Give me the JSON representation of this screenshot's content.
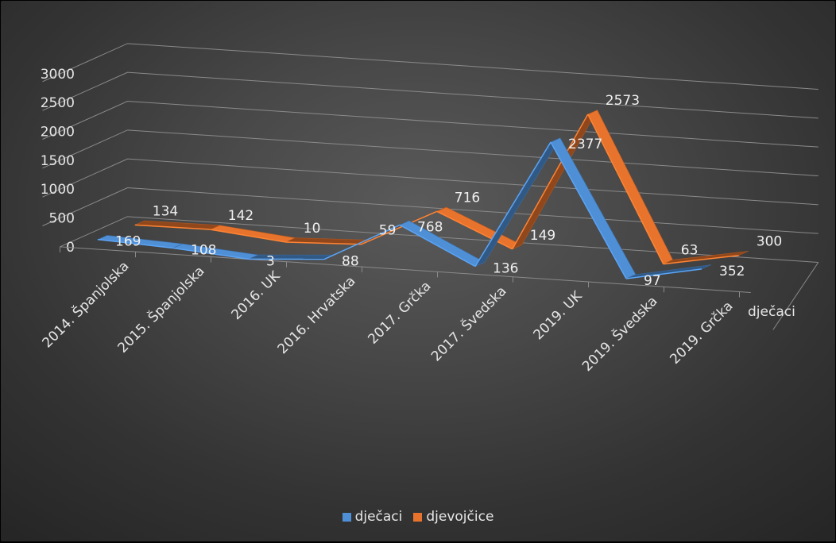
{
  "chart_data": {
    "type": "line",
    "title": "",
    "xlabel": "",
    "ylabel": "",
    "ylim": [
      0,
      3000
    ],
    "yticks": [
      0,
      500,
      1000,
      1500,
      2000,
      2500,
      3000
    ],
    "grid": true,
    "legend_position": "bottom",
    "depth_axis_label": "dječaci",
    "categories": [
      "2014. Španjolska",
      "2015. Španjolska",
      "2016. UK",
      "2016. Hrvatska",
      "2017. Grčka",
      "2017. Švedska",
      "2019. UK",
      "2019. Švedska",
      "2019. Grčka"
    ],
    "series": [
      {
        "name": "dječaci",
        "color": "#4f8fd6",
        "values": [
          169,
          108,
          3,
          88,
          768,
          136,
          2377,
          97,
          352
        ]
      },
      {
        "name": "djevojčice",
        "color": "#e8732c",
        "values": [
          134,
          142,
          10,
          59,
          716,
          149,
          2573,
          63,
          300
        ]
      }
    ]
  }
}
